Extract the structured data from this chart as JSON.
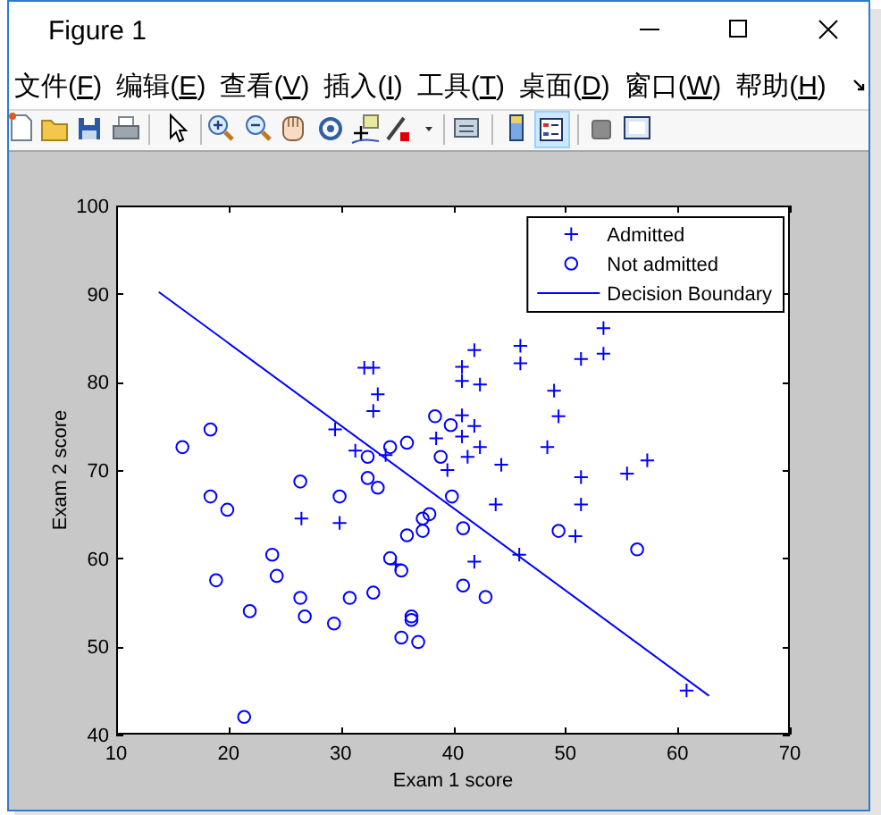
{
  "chart_data": {
    "type": "scatter",
    "title": "Figure 1",
    "xlabel": "Exam 1 score",
    "ylabel": "Exam 2 score",
    "annotations": [
      "文件(F)",
      "编辑(E)",
      "查看(V)",
      "插入(I)",
      "工具(T)",
      "桌面(D)",
      "窗口(W)",
      "帮助(H)"
    ],
    "xlim": [
      10,
      70
    ],
    "ylim": [
      40,
      100
    ],
    "xticks": [
      10,
      20,
      30,
      40,
      50,
      60,
      70
    ],
    "yticks": [
      40,
      50,
      60,
      70,
      80,
      90,
      100
    ],
    "legend": "top right",
    "series": [
      {
        "name": "Admitted",
        "type": "scatter",
        "marker": "cross",
        "color": "#0000ff",
        "x": [
          32.1,
          32.9,
          33.3,
          32.9,
          29.5,
          31.3,
          34.0,
          38.5,
          39.5,
          53.4,
          53.4,
          51.4,
          46.0,
          46.0,
          41.9,
          40.8,
          40.8,
          42.4,
          49.0,
          49.4,
          40.8,
          41.9,
          40.8,
          42.4,
          41.3,
          48.4,
          44.3,
          51.4,
          55.5,
          57.3,
          43.8,
          51.4,
          50.9,
          45.9,
          41.9,
          60.8,
          26.5,
          29.9,
          34.9
        ],
        "values": [
          81.6,
          81.6,
          78.6,
          76.7,
          74.6,
          72.2,
          71.7,
          73.6,
          70.0,
          86.1,
          83.2,
          82.6,
          84.1,
          82.1,
          83.6,
          81.7,
          80.1,
          79.7,
          79.0,
          76.1,
          76.2,
          75.0,
          73.8,
          72.6,
          71.5,
          72.6,
          70.6,
          69.2,
          69.6,
          71.1,
          66.1,
          66.1,
          62.5,
          60.4,
          59.6,
          45.0,
          64.5,
          64.0,
          59.3
        ]
      },
      {
        "name": "Not admitted",
        "type": "scatter",
        "marker": "circle",
        "color": "#0000ff",
        "x": [
          15.9,
          18.4,
          32.4,
          34.4,
          35.9,
          38.4,
          39.8,
          38.9,
          32.4,
          26.4,
          39.9,
          40.9,
          49.4,
          56.4,
          40.9,
          42.9,
          18.4,
          19.9,
          29.9,
          33.3,
          37.9,
          37.3,
          37.3,
          35.9,
          23.9,
          34.4,
          35.4,
          18.9,
          24.3,
          26.4,
          30.8,
          32.9,
          21.9,
          26.8,
          29.4,
          36.3,
          36.3,
          35.4,
          36.9,
          21.4
        ],
        "values": [
          72.6,
          74.6,
          71.5,
          72.6,
          73.1,
          76.1,
          75.1,
          71.5,
          69.1,
          68.7,
          67.0,
          63.4,
          63.1,
          61.0,
          56.9,
          55.6,
          67.0,
          65.5,
          67.0,
          68.0,
          65.0,
          64.5,
          63.1,
          62.6,
          60.4,
          60.0,
          58.6,
          57.5,
          58.0,
          55.5,
          55.5,
          56.1,
          54.0,
          53.4,
          52.6,
          53.4,
          53.0,
          51.0,
          50.5,
          42.0
        ]
      },
      {
        "name": "Decision Boundary",
        "type": "line",
        "color": "#0000ff",
        "x": [
          13.8,
          62.8
        ],
        "values": [
          90.2,
          44.4
        ]
      }
    ]
  }
}
